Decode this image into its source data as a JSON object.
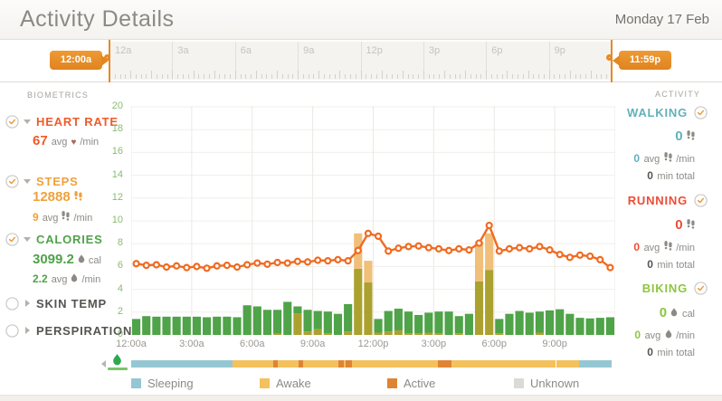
{
  "header": {
    "title": "Activity Details",
    "date": "Monday 17 Feb"
  },
  "timeline": {
    "start_label": "12:00a",
    "end_label": "11:59p",
    "tick_labels": [
      "12a",
      "3a",
      "6a",
      "9a",
      "12p",
      "3p",
      "6p",
      "9p"
    ]
  },
  "biometrics": {
    "heading": "BIOMETRICS",
    "heart_rate": {
      "label": "HEART RATE",
      "value": "67",
      "avg_label": "avg",
      "per_label": "/min"
    },
    "steps": {
      "label": "STEPS",
      "total": "12888",
      "avg": "9",
      "avg_label": "avg",
      "per_label": "/min"
    },
    "calories": {
      "label": "CALORIES",
      "total": "3099.2",
      "total_unit": "cal",
      "avg": "2.2",
      "avg_label": "avg",
      "per_label": "/min"
    },
    "skin_temp": {
      "label": "SKIN TEMP"
    },
    "perspiration": {
      "label": "PERSPIRATION"
    }
  },
  "activity": {
    "heading": "ACTIVITY",
    "walking": {
      "label": "WALKING",
      "steps": "0",
      "avg": "0",
      "avg_label": "avg",
      "per_label": "/min",
      "minutes": "0",
      "minutes_label": "min total"
    },
    "running": {
      "label": "RUNNING",
      "steps": "0",
      "avg": "0",
      "avg_label": "avg",
      "per_label": "/min",
      "minutes": "0",
      "minutes_label": "min total"
    },
    "biking": {
      "label": "BIKING",
      "cal": "0",
      "cal_unit": "cal",
      "avg": "0",
      "avg_label": "avg",
      "per_label": "/min",
      "minutes": "0",
      "minutes_label": "min total"
    }
  },
  "chart_data": {
    "type": "bar",
    "title": "",
    "xlabel": "",
    "ylabel": "",
    "ylim": [
      0,
      20
    ],
    "y_ticks": [
      0,
      2,
      4,
      6,
      8,
      10,
      12,
      14,
      16,
      18,
      20
    ],
    "x_labels": [
      "12:00a",
      "3:00a",
      "6:00a",
      "9:00a",
      "12:00p",
      "3:00p",
      "6:00p",
      "9:00p"
    ],
    "slot_minutes": 30,
    "grid": true,
    "series": [
      {
        "name": "olive",
        "type": "bar",
        "values": [
          0,
          0,
          0,
          0,
          0,
          0,
          0,
          0,
          0,
          0,
          0,
          0,
          0,
          0,
          0.1,
          0,
          1.9,
          0.3,
          0.5,
          0.15,
          0,
          0.3,
          5.8,
          4.6,
          0.2,
          0.3,
          0.4,
          0.15,
          0.15,
          0.2,
          0.15,
          0,
          0.15,
          0,
          4.7,
          5.7,
          0.15,
          0,
          0,
          0,
          0.2,
          0,
          0,
          0,
          0,
          0,
          0,
          0
        ]
      },
      {
        "name": "green",
        "type": "bar",
        "values": [
          1.4,
          1.65,
          1.6,
          1.6,
          1.6,
          1.6,
          1.6,
          1.55,
          1.6,
          1.6,
          1.55,
          2.6,
          2.5,
          2.2,
          2.1,
          2.9,
          0.6,
          1.9,
          1.6,
          1.9,
          1.85,
          2.4,
          0,
          0,
          1.2,
          1.8,
          1.9,
          1.9,
          1.6,
          1.75,
          1.9,
          2.05,
          1.5,
          1.85,
          0,
          0,
          1.25,
          1.85,
          2.1,
          1.95,
          1.85,
          2.15,
          2.25,
          1.85,
          1.5,
          1.45,
          1.5,
          1.55
        ]
      },
      {
        "name": "tan",
        "type": "bar",
        "values": [
          0,
          0,
          0,
          0,
          0,
          0,
          0,
          0,
          0,
          0,
          0,
          0,
          0,
          0,
          0,
          0,
          0,
          0,
          0,
          0,
          0,
          0,
          3.1,
          1.9,
          0,
          0,
          0,
          0,
          0,
          0,
          0,
          0,
          0,
          0,
          3.5,
          3.2,
          0,
          0,
          0,
          0,
          0,
          0,
          0,
          0,
          0,
          0,
          0,
          0
        ]
      },
      {
        "name": "line",
        "type": "line",
        "values": [
          6.25,
          6.1,
          6.15,
          5.95,
          6.05,
          5.9,
          6.0,
          5.85,
          6.05,
          6.1,
          5.95,
          6.15,
          6.3,
          6.2,
          6.35,
          6.3,
          6.45,
          6.4,
          6.55,
          6.5,
          6.6,
          6.5,
          7.4,
          8.9,
          8.65,
          7.35,
          7.6,
          7.75,
          7.8,
          7.65,
          7.55,
          7.4,
          7.55,
          7.45,
          8.05,
          9.6,
          7.35,
          7.55,
          7.65,
          7.55,
          7.75,
          7.45,
          7.05,
          6.8,
          7.0,
          6.9,
          6.6,
          5.9
        ]
      }
    ],
    "colors": {
      "olive": "#aba12f",
      "green": "#4fa348",
      "tan": "#f0bf79",
      "line": "#ef6b21",
      "y_axis": "#8abb70"
    }
  },
  "status_bar": {
    "colors": {
      "sleeping": "#94c7d3",
      "awake": "#f5c15c",
      "active": "#df8434",
      "unknown": "#dcdad5",
      "gap": "#ffffff"
    },
    "segments": [
      {
        "state": "sleeping",
        "pct": 21.0
      },
      {
        "state": "awake",
        "pct": 8.6
      },
      {
        "state": "active",
        "pct": 0.95
      },
      {
        "state": "awake",
        "pct": 4.3
      },
      {
        "state": "active",
        "pct": 0.95
      },
      {
        "state": "awake",
        "pct": 7.3
      },
      {
        "state": "active",
        "pct": 1.1
      },
      {
        "state": "awake",
        "pct": 0.4
      },
      {
        "state": "active",
        "pct": 1.3
      },
      {
        "state": "awake",
        "pct": 18.0
      },
      {
        "state": "active",
        "pct": 2.8
      },
      {
        "state": "awake",
        "pct": 21.7
      },
      {
        "state": "gap",
        "pct": 0.2
      },
      {
        "state": "awake",
        "pct": 4.7
      },
      {
        "state": "sleeping",
        "pct": 6.7
      }
    ]
  },
  "legend": {
    "items": [
      {
        "label": "Sleeping",
        "state": "sleeping"
      },
      {
        "label": "Awake",
        "state": "awake"
      },
      {
        "label": "Active",
        "state": "active"
      },
      {
        "label": "Unknown",
        "state": "unknown"
      }
    ]
  }
}
